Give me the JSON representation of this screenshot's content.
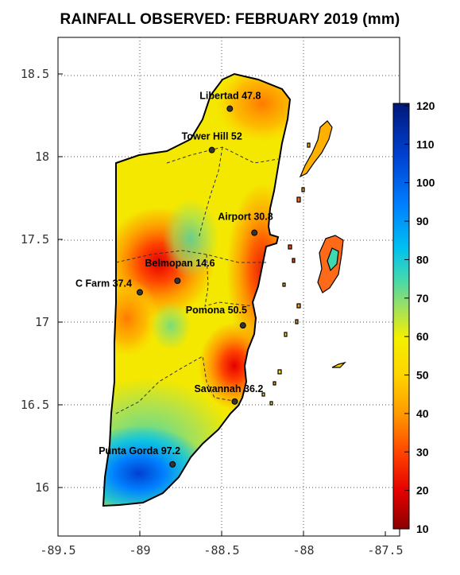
{
  "title": "RAINFALL OBSERVED: FEBRUARY 2019 (mm)",
  "map": {
    "lon_ticks": [
      "-89.5",
      "-89",
      "-88.5",
      "-88",
      "-87.5"
    ],
    "lat_ticks": [
      "18.5",
      "18",
      "17.5",
      "17",
      "16.5",
      "16"
    ],
    "lon_range": [
      -89.5,
      -87.5
    ],
    "lat_range": [
      15.72,
      18.75
    ],
    "grid": "dotted"
  },
  "colorbar": {
    "ticks": [
      "120",
      "110",
      "100",
      "90",
      "80",
      "70",
      "60",
      "50",
      "40",
      "30",
      "20",
      "10"
    ],
    "range": [
      10,
      120
    ],
    "colors": [
      "#8b0000",
      "#e60000",
      "#ff4500",
      "#ff9900",
      "#ffd400",
      "#f4f000",
      "#9fe060",
      "#40d8b0",
      "#00c0f0",
      "#0080ff",
      "#0040d0",
      "#00187a"
    ]
  },
  "stations": [
    {
      "name": "Libertad",
      "value": "47.8",
      "lon": -88.45,
      "lat": 18.29
    },
    {
      "name": "Tower Hill",
      "value": "52",
      "lon": -88.56,
      "lat": 18.04
    },
    {
      "name": "Airport",
      "value": "30.8",
      "lon": -88.3,
      "lat": 17.54
    },
    {
      "name": "Belmopan",
      "value": "14.6",
      "lon": -88.77,
      "lat": 17.25
    },
    {
      "name": "C Farm",
      "value": "37.4",
      "lon": -89.0,
      "lat": 17.18
    },
    {
      "name": "Pomona",
      "value": "50.5",
      "lon": -88.37,
      "lat": 16.98
    },
    {
      "name": "Savannah",
      "value": "36.2",
      "lon": -88.42,
      "lat": 16.52
    },
    {
      "name": "Punta Gorda",
      "value": "97.2",
      "lon": -88.8,
      "lat": 16.14
    }
  ]
}
